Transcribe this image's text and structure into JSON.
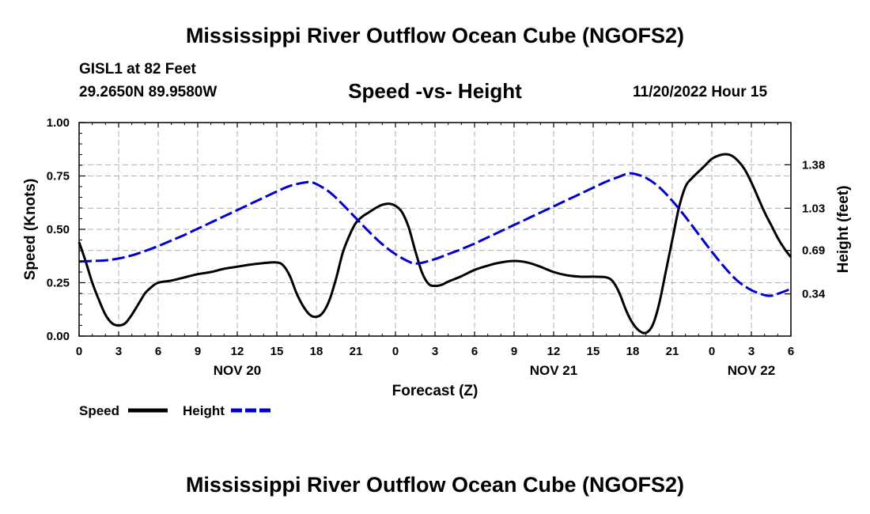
{
  "header": {
    "title": "Mississippi River Outflow Ocean Cube (NGOFS2)",
    "station": "GISL1 at 82 Feet",
    "coords": "29.2650N  89.9580W",
    "plot_title": "Speed -vs- Height",
    "run_time": "11/20/2022 Hour 15"
  },
  "footer": {
    "title": "Mississippi River Outflow Ocean Cube (NGOFS2)"
  },
  "colors": {
    "speed": "#000000",
    "height": "#0000cc",
    "grid": "#b0b0b0"
  },
  "chart_data": {
    "type": "line",
    "title": "Speed -vs- Height",
    "xlabel": "Forecast (Z)",
    "ylabel": "Speed (Knots)",
    "y2label": "Height (feet)",
    "xlim": [
      0,
      54
    ],
    "ylim": [
      0,
      1.0
    ],
    "y2lim": [
      0.0,
      1.72
    ],
    "x_ticks": [
      0,
      3,
      6,
      9,
      12,
      15,
      18,
      21,
      24,
      27,
      30,
      33,
      36,
      39,
      42,
      45,
      48,
      51,
      54
    ],
    "x_tick_labels": [
      "0",
      "3",
      "6",
      "9",
      "12",
      "15",
      "18",
      "21",
      "0",
      "3",
      "6",
      "9",
      "12",
      "15",
      "18",
      "21",
      "0",
      "3",
      "6"
    ],
    "date_labels": [
      {
        "x": 12,
        "label": "NOV 20"
      },
      {
        "x": 36,
        "label": "NOV 21"
      },
      {
        "x": 51,
        "label": "NOV 22"
      }
    ],
    "y_ticks": [
      0,
      0.25,
      0.5,
      0.75,
      1.0
    ],
    "y_tick_labels": [
      "0.00",
      "0.25",
      "0.50",
      "0.75",
      "1.00"
    ],
    "y2_ticks": [
      0.34,
      0.69,
      1.03,
      1.38
    ],
    "y2_tick_labels": [
      "0.34",
      "0.69",
      "1.03",
      "1.38"
    ],
    "legend": {
      "position": "bottom-left",
      "speed_label": "Speed",
      "height_label": "Height"
    },
    "series": [
      {
        "name": "Speed",
        "axis": "left",
        "style": "solid",
        "points": [
          [
            0,
            0.44
          ],
          [
            0.5,
            0.35
          ],
          [
            1,
            0.25
          ],
          [
            1.5,
            0.17
          ],
          [
            2,
            0.1
          ],
          [
            2.5,
            0.06
          ],
          [
            3,
            0.05
          ],
          [
            3.5,
            0.06
          ],
          [
            4,
            0.1
          ],
          [
            4.5,
            0.15
          ],
          [
            5,
            0.2
          ],
          [
            5.5,
            0.23
          ],
          [
            6,
            0.25
          ],
          [
            7,
            0.26
          ],
          [
            8,
            0.275
          ],
          [
            9,
            0.29
          ],
          [
            10,
            0.3
          ],
          [
            11,
            0.315
          ],
          [
            12,
            0.325
          ],
          [
            13,
            0.335
          ],
          [
            14,
            0.342
          ],
          [
            15,
            0.345
          ],
          [
            15.5,
            0.33
          ],
          [
            16,
            0.28
          ],
          [
            16.5,
            0.2
          ],
          [
            17,
            0.14
          ],
          [
            17.5,
            0.1
          ],
          [
            18,
            0.09
          ],
          [
            18.5,
            0.11
          ],
          [
            19,
            0.17
          ],
          [
            19.5,
            0.27
          ],
          [
            20,
            0.39
          ],
          [
            20.5,
            0.47
          ],
          [
            21,
            0.53
          ],
          [
            21.5,
            0.56
          ],
          [
            22,
            0.58
          ],
          [
            22.5,
            0.6
          ],
          [
            23,
            0.615
          ],
          [
            23.5,
            0.62
          ],
          [
            24,
            0.61
          ],
          [
            24.5,
            0.58
          ],
          [
            25,
            0.51
          ],
          [
            25.5,
            0.4
          ],
          [
            26,
            0.3
          ],
          [
            26.5,
            0.245
          ],
          [
            27,
            0.235
          ],
          [
            27.5,
            0.24
          ],
          [
            28,
            0.255
          ],
          [
            29,
            0.28
          ],
          [
            30,
            0.31
          ],
          [
            31,
            0.33
          ],
          [
            32,
            0.345
          ],
          [
            33,
            0.352
          ],
          [
            34,
            0.345
          ],
          [
            35,
            0.325
          ],
          [
            36,
            0.3
          ],
          [
            37,
            0.285
          ],
          [
            38,
            0.278
          ],
          [
            39,
            0.278
          ],
          [
            40,
            0.275
          ],
          [
            40.5,
            0.255
          ],
          [
            41,
            0.2
          ],
          [
            41.5,
            0.12
          ],
          [
            42,
            0.06
          ],
          [
            42.5,
            0.025
          ],
          [
            43,
            0.015
          ],
          [
            43.5,
            0.05
          ],
          [
            44,
            0.15
          ],
          [
            44.5,
            0.3
          ],
          [
            45,
            0.45
          ],
          [
            45.5,
            0.6
          ],
          [
            46,
            0.7
          ],
          [
            46.5,
            0.74
          ],
          [
            47,
            0.77
          ],
          [
            47.5,
            0.8
          ],
          [
            48,
            0.83
          ],
          [
            48.5,
            0.845
          ],
          [
            49,
            0.852
          ],
          [
            49.5,
            0.845
          ],
          [
            50,
            0.82
          ],
          [
            50.5,
            0.78
          ],
          [
            51,
            0.72
          ],
          [
            51.5,
            0.65
          ],
          [
            52,
            0.58
          ],
          [
            52.5,
            0.52
          ],
          [
            53,
            0.46
          ],
          [
            53.5,
            0.41
          ],
          [
            54,
            0.37
          ]
        ]
      },
      {
        "name": "Height",
        "axis": "right",
        "style": "dashed",
        "points": [
          [
            0,
            0.6
          ],
          [
            1,
            0.605
          ],
          [
            2,
            0.61
          ],
          [
            3,
            0.625
          ],
          [
            4,
            0.65
          ],
          [
            5,
            0.685
          ],
          [
            6,
            0.725
          ],
          [
            7,
            0.77
          ],
          [
            8,
            0.815
          ],
          [
            9,
            0.865
          ],
          [
            10,
            0.915
          ],
          [
            11,
            0.965
          ],
          [
            12,
            1.015
          ],
          [
            13,
            1.065
          ],
          [
            14,
            1.115
          ],
          [
            15,
            1.165
          ],
          [
            16,
            1.21
          ],
          [
            17,
            1.235
          ],
          [
            17.5,
            1.24
          ],
          [
            18,
            1.225
          ],
          [
            19,
            1.16
          ],
          [
            20,
            1.06
          ],
          [
            21,
            0.95
          ],
          [
            22,
            0.84
          ],
          [
            23,
            0.74
          ],
          [
            24,
            0.66
          ],
          [
            25,
            0.6
          ],
          [
            25.5,
            0.585
          ],
          [
            26,
            0.59
          ],
          [
            27,
            0.62
          ],
          [
            28,
            0.66
          ],
          [
            29,
            0.7
          ],
          [
            30,
            0.745
          ],
          [
            31,
            0.795
          ],
          [
            32,
            0.845
          ],
          [
            33,
            0.895
          ],
          [
            34,
            0.945
          ],
          [
            35,
            0.995
          ],
          [
            36,
            1.045
          ],
          [
            37,
            1.095
          ],
          [
            38,
            1.145
          ],
          [
            39,
            1.195
          ],
          [
            40,
            1.245
          ],
          [
            41,
            1.285
          ],
          [
            41.5,
            1.305
          ],
          [
            42,
            1.31
          ],
          [
            43,
            1.275
          ],
          [
            44,
            1.2
          ],
          [
            45,
            1.09
          ],
          [
            46,
            0.96
          ],
          [
            47,
            0.82
          ],
          [
            48,
            0.68
          ],
          [
            49,
            0.55
          ],
          [
            50,
            0.44
          ],
          [
            51,
            0.37
          ],
          [
            52,
            0.33
          ],
          [
            52.5,
            0.325
          ],
          [
            53,
            0.34
          ],
          [
            54,
            0.38
          ]
        ]
      }
    ]
  }
}
